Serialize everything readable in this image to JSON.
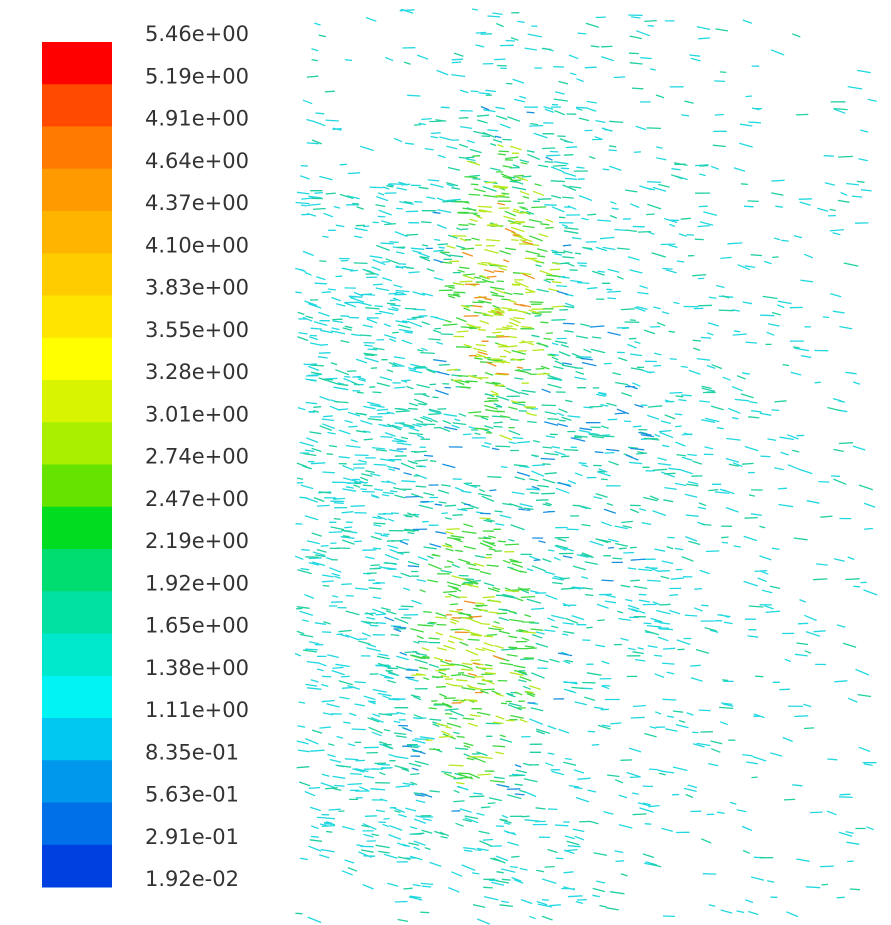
{
  "legend": {
    "labels": [
      "5.46e+00",
      "5.19e+00",
      "4.91e+00",
      "4.64e+00",
      "4.37e+00",
      "4.10e+00",
      "3.83e+00",
      "3.55e+00",
      "3.28e+00",
      "3.01e+00",
      "2.74e+00",
      "2.47e+00",
      "2.19e+00",
      "1.92e+00",
      "1.65e+00",
      "1.38e+00",
      "1.11e+00",
      "8.35e-01",
      "5.63e-01",
      "2.91e-01",
      "1.92e-02"
    ]
  }
}
